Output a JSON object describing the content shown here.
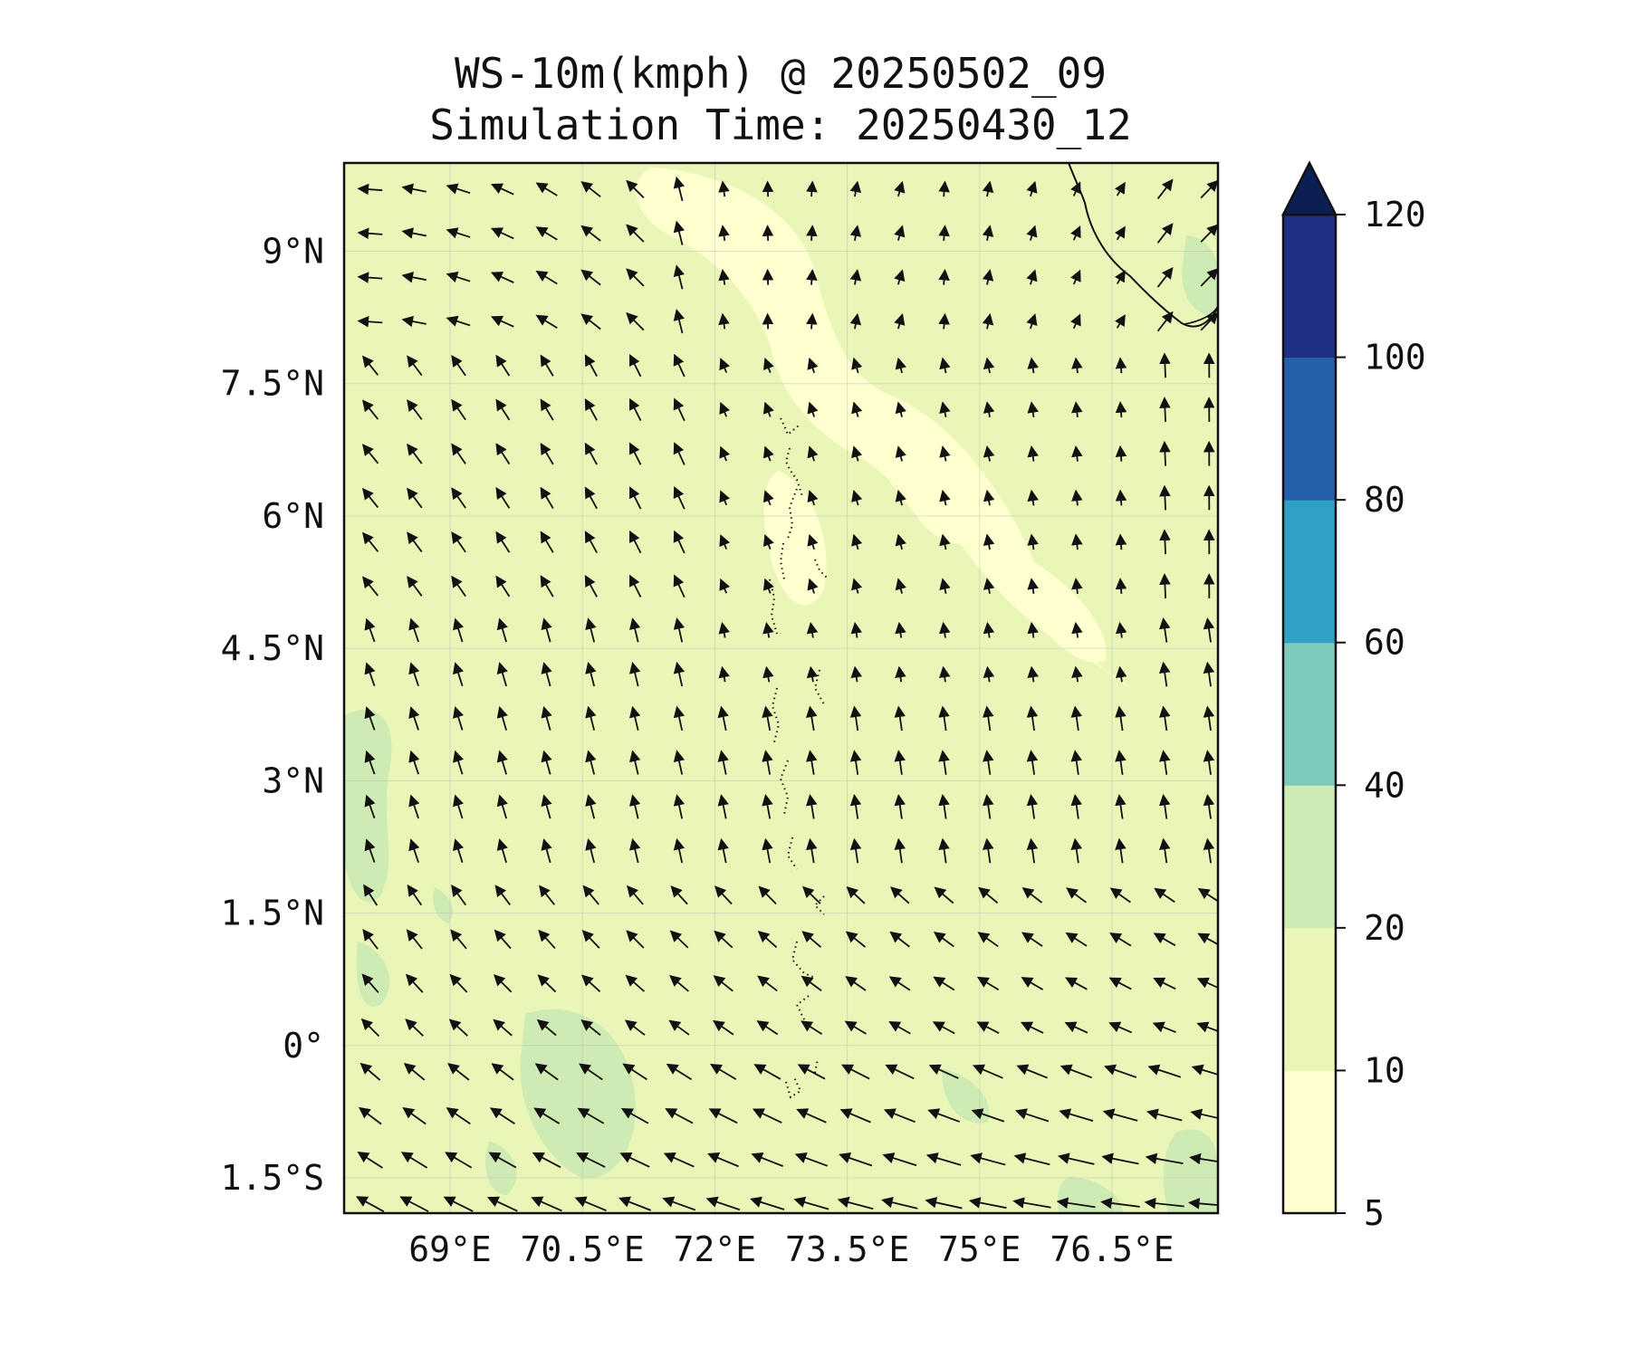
{
  "chart_data": {
    "type": "map-contour-wind",
    "title": "WS-10m(kmph) @ 20250502_09",
    "subtitle": "Simulation Time: 20250430_12",
    "lon_range": [
      67.8,
      77.7
    ],
    "lat_range": [
      -1.9,
      10.0
    ],
    "x_ticks": [
      {
        "value": 69,
        "label": "69°E"
      },
      {
        "value": 70.5,
        "label": "70.5°E"
      },
      {
        "value": 72,
        "label": "72°E"
      },
      {
        "value": 73.5,
        "label": "73.5°E"
      },
      {
        "value": 75,
        "label": "75°E"
      },
      {
        "value": 76.5,
        "label": "76.5°E"
      }
    ],
    "y_ticks": [
      {
        "value": 9,
        "label": "9°N"
      },
      {
        "value": 7.5,
        "label": "7.5°N"
      },
      {
        "value": 6,
        "label": "6°N"
      },
      {
        "value": 4.5,
        "label": "4.5°N"
      },
      {
        "value": 3,
        "label": "3°N"
      },
      {
        "value": 1.5,
        "label": "1.5°N"
      },
      {
        "value": 0,
        "label": "0°"
      },
      {
        "value": -1.5,
        "label": "1.5°S"
      }
    ],
    "gridlines": true,
    "colorbar": {
      "levels": [
        5,
        10,
        20,
        40,
        60,
        80,
        100,
        120
      ],
      "labels": [
        "5",
        "10",
        "20",
        "40",
        "60",
        "80",
        "100",
        "120"
      ],
      "colors": [
        "#ffffd0",
        "#eaf6b8",
        "#cdebb3",
        "#7ccbbd",
        "#2fa0c6",
        "#2561aa",
        "#1f2f84"
      ],
      "extend_color": "#0c1f55",
      "extend": "max"
    },
    "field_colors": {
      "5-10": "#ffffd0",
      "10-20": "#eaf6b8",
      "20-40": "#cdebb3"
    },
    "wind_vectors": {
      "lon_start": 68.1,
      "lon_step": 0.5,
      "lon_count": 20,
      "lat_start": 9.7,
      "lat_step": -0.5,
      "lat_count": 24,
      "direction_pattern": [
        {
          "lat": 9.7,
          "dir": "west in the west, north in the centre, north-east in the east"
        },
        {
          "lat": 7.5,
          "dir": "north-west in the west, north in the centre and east"
        },
        {
          "lat": 4.5,
          "dir": "north-north-west in the west, north in the east"
        },
        {
          "lat": 0,
          "dir": "north-west across the domain"
        },
        {
          "lat": -1.5,
          "dir": "north-west, strongest in the south-east"
        }
      ]
    }
  }
}
